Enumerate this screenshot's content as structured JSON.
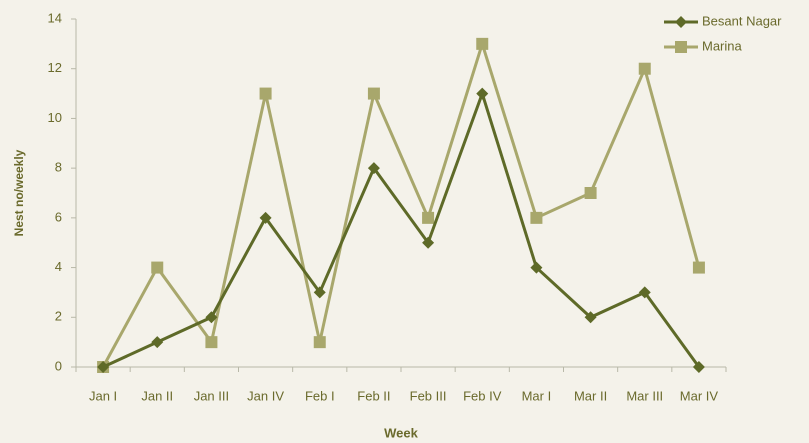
{
  "chart_data": {
    "type": "line",
    "x_label": "Week",
    "y_label": "Nest no/weekly",
    "categories": [
      "Jan I",
      "Jan II",
      "Jan III",
      "Jan IV",
      "Feb I",
      "Feb II",
      "Feb III",
      "Feb IV",
      "Mar I",
      "Mar II",
      "Mar III",
      "Mar IV"
    ],
    "series": [
      {
        "name": "Besant Nagar",
        "color": "#5e6a28",
        "marker": "diamond",
        "values": [
          0,
          1,
          2,
          6,
          3,
          8,
          5,
          11,
          4,
          2,
          3,
          0
        ]
      },
      {
        "name": "Marina",
        "color": "#a8a76c",
        "marker": "square",
        "values": [
          0,
          4,
          1,
          11,
          1,
          11,
          6,
          13,
          6,
          7,
          12,
          4
        ]
      }
    ],
    "ylim": [
      0,
      14
    ],
    "yticks": [
      0,
      2,
      4,
      6,
      8,
      10,
      12,
      14
    ],
    "grid": false,
    "legend": "top-right"
  }
}
